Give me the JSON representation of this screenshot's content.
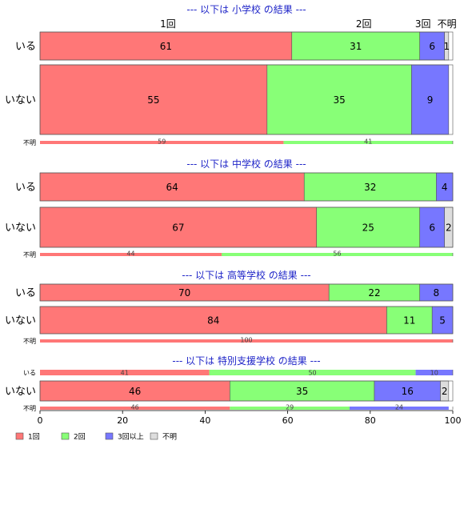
{
  "chart_data": {
    "type": "bar",
    "orientation": "horizontal",
    "stacked": "percent",
    "xlim": [
      0,
      100
    ],
    "x_ticks": [
      0,
      20,
      40,
      60,
      80,
      100
    ],
    "category_names": [
      "1回",
      "2回",
      "3回以上",
      "不明"
    ],
    "category_axis_labels": [
      "1回",
      "2回",
      "3回",
      "不明"
    ],
    "legend": {
      "placement": "bottom-left",
      "entries": [
        "1回",
        "2回",
        "3回以上",
        "不明"
      ]
    },
    "colors": [
      "#ff7777",
      "#88ff77",
      "#7777ff",
      "#dddddd"
    ],
    "panels": [
      {
        "title": "--- 以下は 小学校 の結果 ---",
        "rows": [
          {
            "label": "いる",
            "values": [
              61,
              31,
              6,
              1
            ]
          },
          {
            "label": "いない",
            "values": [
              55,
              35,
              9,
              0
            ]
          },
          {
            "label": "不明",
            "values": [
              59,
              41,
              0,
              0
            ]
          }
        ]
      },
      {
        "title": "--- 以下は 中学校 の結果 ---",
        "rows": [
          {
            "label": "いる",
            "values": [
              64,
              32,
              4,
              0
            ]
          },
          {
            "label": "いない",
            "values": [
              67,
              25,
              6,
              2
            ]
          },
          {
            "label": "不明",
            "values": [
              44,
              56,
              0,
              0
            ]
          }
        ]
      },
      {
        "title": "--- 以下は 高等学校 の結果 ---",
        "rows": [
          {
            "label": "いる",
            "values": [
              70,
              22,
              8,
              0
            ]
          },
          {
            "label": "いない",
            "values": [
              84,
              11,
              5,
              0
            ]
          },
          {
            "label": "不明",
            "values": [
              100,
              0,
              0,
              0
            ]
          }
        ]
      },
      {
        "title": "--- 以下は 特別支援学校 の結果 ---",
        "rows": [
          {
            "label": "いる",
            "values": [
              41,
              50,
              10,
              0
            ]
          },
          {
            "label": "いない",
            "values": [
              46,
              35,
              16,
              2
            ]
          },
          {
            "label": "不明",
            "values": [
              46,
              29,
              24,
              0
            ]
          }
        ]
      }
    ]
  }
}
